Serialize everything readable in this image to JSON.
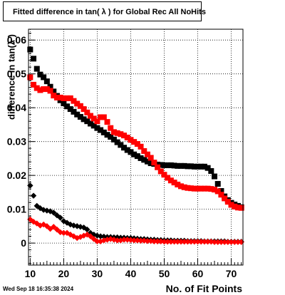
{
  "title": "Fitted difference in tan( λ ) for Global Rec All NoHits",
  "ylabel": "difference in tan(λ )",
  "xlabel": "No. of Fit Points",
  "datestamp": "Wed Sep 18 16:35:38 2024",
  "colors": {
    "black_series": "#000000",
    "red_series": "#ff0000",
    "grid": "#000000",
    "frame": "#000000"
  },
  "chart_data": {
    "type": "scatter",
    "xlim": [
      9.5,
      73.5
    ],
    "ylim": [
      -0.0065,
      0.0632
    ],
    "xticks": [
      10,
      20,
      30,
      40,
      50,
      60,
      70
    ],
    "yticks": [
      0,
      0.01,
      0.02,
      0.03,
      0.04,
      0.05,
      0.06
    ],
    "ytick_labels": [
      "0",
      "0.01",
      "0.02",
      "0.03",
      "0.04",
      "0.05",
      "0.06"
    ],
    "grid": true,
    "series": [
      {
        "color": "#000000",
        "marker": "square",
        "x": [
          10,
          11,
          12,
          13,
          14,
          15,
          16,
          17,
          18,
          19,
          20,
          21,
          22,
          23,
          24,
          25,
          26,
          27,
          28,
          29,
          30,
          31,
          32,
          33,
          34,
          35,
          36,
          37,
          38,
          39,
          40,
          41,
          42,
          43,
          44,
          45,
          46,
          47,
          48,
          49,
          50,
          51,
          52,
          53,
          54,
          55,
          56,
          57,
          58,
          59,
          60,
          61,
          62,
          63,
          64,
          65,
          66,
          67,
          68,
          69,
          70,
          71,
          72,
          73
        ],
        "y": [
          0.0572,
          0.0545,
          0.0515,
          0.0498,
          0.049,
          0.0478,
          0.0462,
          0.0448,
          0.0435,
          0.0422,
          0.0413,
          0.0404,
          0.0396,
          0.0388,
          0.038,
          0.0373,
          0.0366,
          0.036,
          0.0353,
          0.0347,
          0.034,
          0.0334,
          0.0327,
          0.032,
          0.0314,
          0.0306,
          0.0298,
          0.029,
          0.0282,
          0.0275,
          0.0269,
          0.0262,
          0.0257,
          0.0251,
          0.0246,
          0.0241,
          0.0236,
          0.0234,
          0.0232,
          0.0231,
          0.023,
          0.023,
          0.023,
          0.0229,
          0.0228,
          0.0228,
          0.0228,
          0.0227,
          0.0227,
          0.0226,
          0.0226,
          0.0226,
          0.0226,
          0.0222,
          0.0213,
          0.0197,
          0.0175,
          0.0154,
          0.0138,
          0.0127,
          0.0119,
          0.0114,
          0.011,
          0.0106
        ]
      },
      {
        "color": "#ff0000",
        "marker": "square",
        "x": [
          10,
          11,
          12,
          13,
          14,
          15,
          16,
          17,
          18,
          19,
          20,
          21,
          22,
          23,
          24,
          25,
          26,
          27,
          28,
          29,
          30,
          31,
          32,
          33,
          34,
          35,
          36,
          37,
          38,
          39,
          40,
          41,
          42,
          43,
          44,
          45,
          46,
          47,
          48,
          49,
          50,
          51,
          52,
          53,
          54,
          55,
          56,
          57,
          58,
          59,
          60,
          61,
          62,
          63,
          64,
          65,
          66,
          67,
          68,
          69,
          70,
          71,
          72,
          73
        ],
        "y": [
          0.049,
          0.0468,
          0.0458,
          0.0452,
          0.0455,
          0.0455,
          0.045,
          0.0436,
          0.043,
          0.043,
          0.0428,
          0.0428,
          0.0428,
          0.042,
          0.0412,
          0.0405,
          0.0396,
          0.0386,
          0.0376,
          0.0368,
          0.036,
          0.0372,
          0.0372,
          0.0358,
          0.034,
          0.0328,
          0.0325,
          0.0322,
          0.0318,
          0.0312,
          0.0305,
          0.0299,
          0.0293,
          0.0285,
          0.0272,
          0.0262,
          0.0252,
          0.0238,
          0.0224,
          0.0212,
          0.0202,
          0.0193,
          0.0185,
          0.0179,
          0.0173,
          0.0168,
          0.0165,
          0.0163,
          0.0162,
          0.0161,
          0.0161,
          0.0161,
          0.0161,
          0.0161,
          0.016,
          0.0158,
          0.0153,
          0.0143,
          0.0132,
          0.0122,
          0.0113,
          0.0108,
          0.0105,
          0.0104
        ]
      },
      {
        "color": "#000000",
        "marker": "diamond",
        "x": [
          10,
          11,
          12,
          13,
          14,
          15,
          16,
          17,
          18,
          19,
          20,
          21,
          22,
          23,
          24,
          25,
          26,
          27,
          28,
          29,
          30,
          31,
          32,
          33,
          34,
          35,
          36,
          37,
          38,
          39,
          40,
          41,
          42,
          43,
          44,
          45,
          46,
          47,
          48,
          49,
          50,
          51,
          52,
          53,
          54,
          55,
          56,
          57,
          58,
          59,
          60,
          61,
          62,
          63,
          64,
          65,
          66,
          67,
          68,
          69,
          70,
          71,
          72,
          73
        ],
        "y": [
          0.017,
          0.014,
          0.011,
          0.0103,
          0.0098,
          0.0096,
          0.0094,
          0.009,
          0.0082,
          0.0075,
          0.0065,
          0.006,
          0.0055,
          0.0052,
          0.005,
          0.0048,
          0.0046,
          0.004,
          0.003,
          0.0025,
          0.0022,
          0.002,
          0.0019,
          0.0018,
          0.0018,
          0.0017,
          0.0017,
          0.0016,
          0.0016,
          0.0015,
          0.0015,
          0.0014,
          0.0013,
          0.0012,
          0.0012,
          0.0011,
          0.001,
          0.001,
          0.0009,
          0.0009,
          0.0008,
          0.0008,
          0.0008,
          0.0007,
          0.0007,
          0.0007,
          0.0007,
          0.0006,
          0.0006,
          0.0006,
          0.0006,
          0.0006,
          0.0005,
          0.0005,
          0.0005,
          0.0005,
          0.0005,
          0.0005,
          0.0005,
          0.0004,
          0.0004,
          0.0004,
          0.0004,
          0.0004
        ]
      },
      {
        "color": "#ff0000",
        "marker": "diamond",
        "x": [
          10,
          11,
          12,
          13,
          14,
          15,
          16,
          17,
          18,
          19,
          20,
          21,
          22,
          23,
          24,
          25,
          26,
          27,
          28,
          29,
          30,
          31,
          32,
          33,
          34,
          35,
          36,
          37,
          38,
          39,
          40,
          41,
          42,
          43,
          44,
          45,
          46,
          47,
          48,
          49,
          50,
          51,
          52,
          53,
          54,
          55,
          56,
          57,
          58,
          59,
          60,
          61,
          62,
          63,
          64,
          65,
          66,
          67,
          68,
          69,
          70,
          71,
          72,
          73
        ],
        "y": [
          0.007,
          0.0063,
          0.0058,
          0.0052,
          0.0055,
          0.005,
          0.0042,
          0.0048,
          0.004,
          0.0032,
          0.003,
          0.003,
          0.0025,
          0.002,
          0.0015,
          0.0018,
          0.0022,
          0.0025,
          0.002,
          0.0012,
          0.0005,
          0.0005,
          0.0008,
          0.001,
          0.0012,
          0.001,
          0.0008,
          0.0008,
          0.001,
          0.001,
          0.0009,
          0.0008,
          0.0008,
          0.0007,
          0.0007,
          0.0006,
          0.0006,
          0.0005,
          0.0005,
          0.0005,
          0.0004,
          0.0004,
          0.0004,
          0.0004,
          0.0004,
          0.0004,
          0.0004,
          0.0004,
          0.0004,
          0.0004,
          0.0004,
          0.0004,
          0.0004,
          0.0004,
          0.0004,
          0.0003,
          0.0003,
          0.0003,
          0.0003,
          0.0003,
          0.0003,
          0.0003,
          0.0003,
          0.0003
        ]
      }
    ]
  }
}
